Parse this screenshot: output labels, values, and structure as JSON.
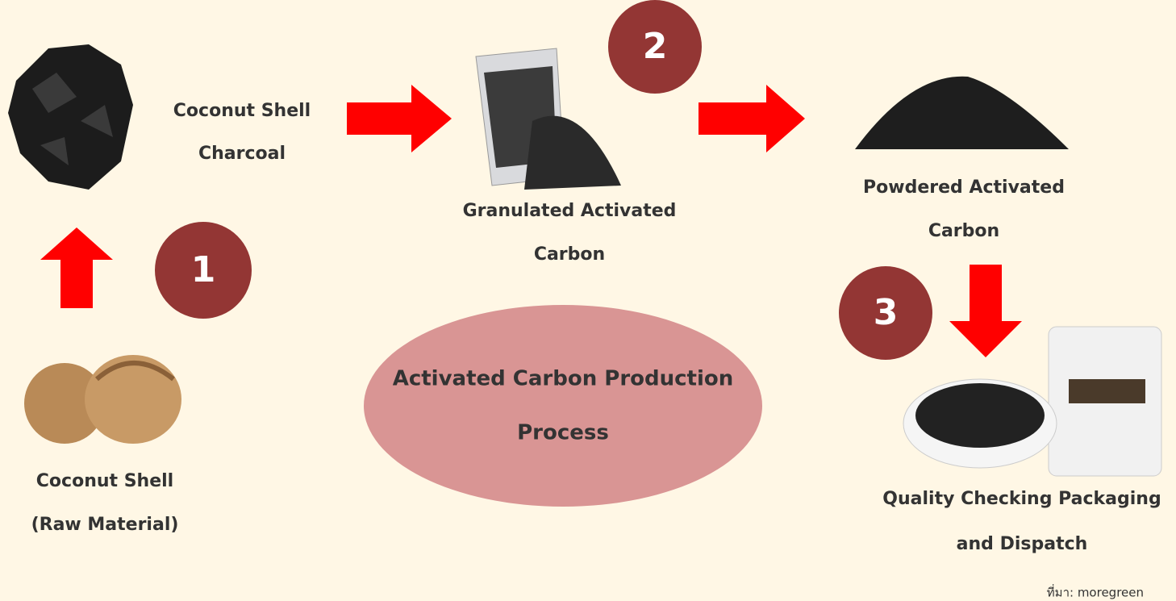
{
  "title": [
    "Activated Carbon Production",
    "Process"
  ],
  "nodes": [
    {
      "label": [
        "Coconut Shell",
        "(Raw Material)"
      ]
    },
    {
      "label": [
        "Coconut Shell",
        "Charcoal"
      ]
    },
    {
      "label": [
        "Granulated Activated",
        "Carbon"
      ]
    },
    {
      "label": [
        "Powdered Activated",
        "Carbon"
      ]
    },
    {
      "label": [
        "Quality Checking Packaging",
        "and Dispatch"
      ]
    }
  ],
  "steps": [
    "1",
    "2",
    "3"
  ],
  "source": "ที่มา: moregreen"
}
